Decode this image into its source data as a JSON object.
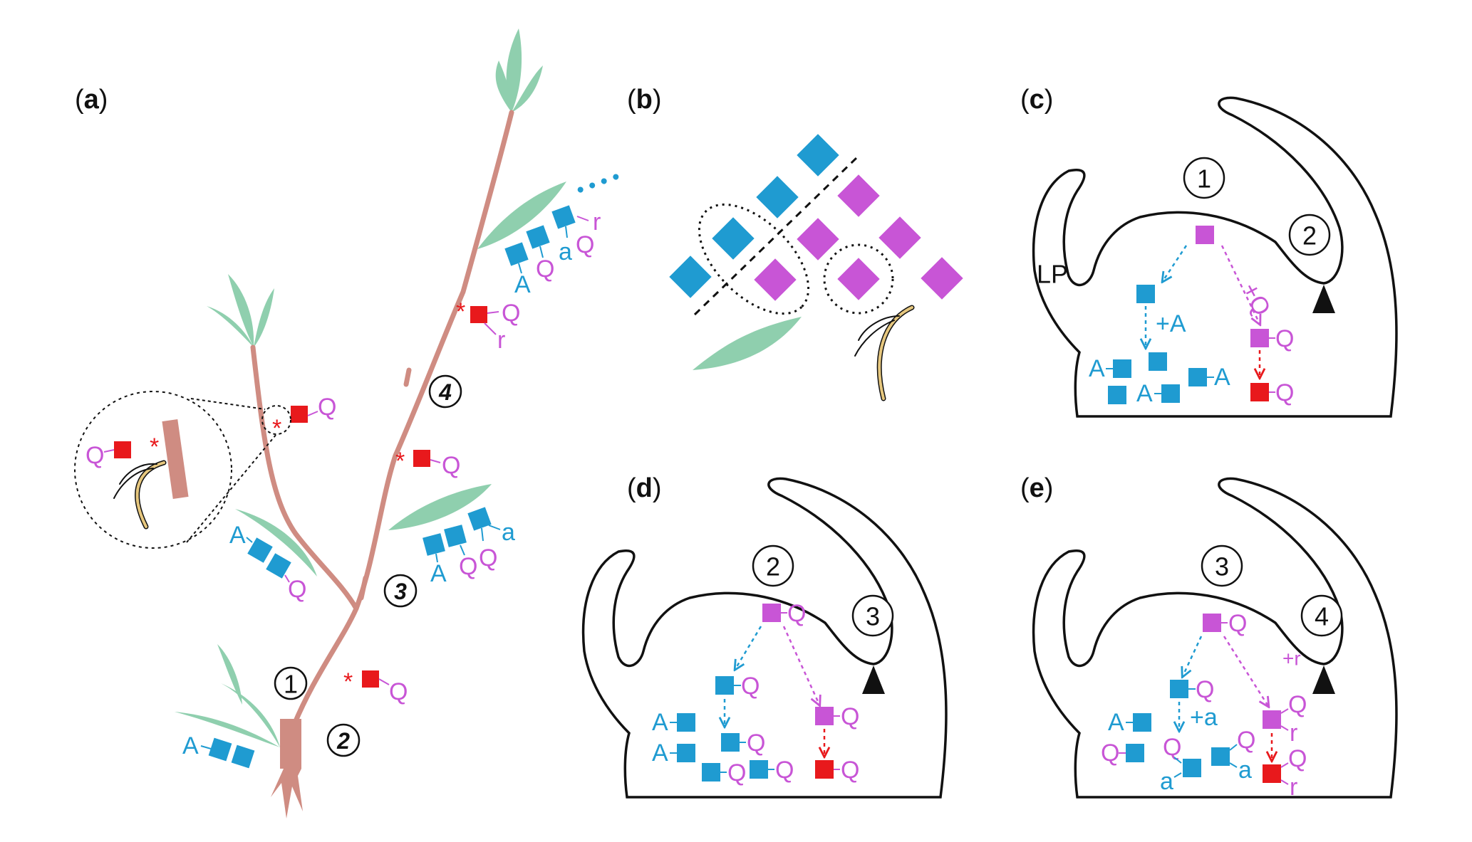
{
  "colors": {
    "blue": "#1f9bd1",
    "magenta": "#c855d6",
    "red": "#e8191c",
    "stem": "#cf8c82",
    "leaf": "#8fcfae",
    "root": "#e6c77e",
    "outline": "#111111"
  },
  "panels": {
    "a": {
      "open": "(",
      "letter": "a",
      "close": ")"
    },
    "b": {
      "open": "(",
      "letter": "b",
      "close": ")"
    },
    "c": {
      "open": "(",
      "letter": "c",
      "close": ")"
    },
    "d": {
      "open": "(",
      "letter": "d",
      "close": ")"
    },
    "e": {
      "open": "(",
      "letter": "e",
      "close": ")"
    }
  },
  "nodes": {
    "n1": "1",
    "n2": "2",
    "n3": "3",
    "n4": "4"
  },
  "letters": {
    "A": "A",
    "Q": "Q",
    "a": "a",
    "r": "r"
  },
  "labels": {
    "LP": "LP",
    "plusA": "+A",
    "plusQ": "+Q",
    "plusa": "+a",
    "plusr": "+r",
    "asterisk": "*",
    "dots": "• • • •"
  },
  "icons": [
    "meristem-outline",
    "arrowhead-marker",
    "dotted-arrow",
    "leaf",
    "stem",
    "root-hair"
  ]
}
